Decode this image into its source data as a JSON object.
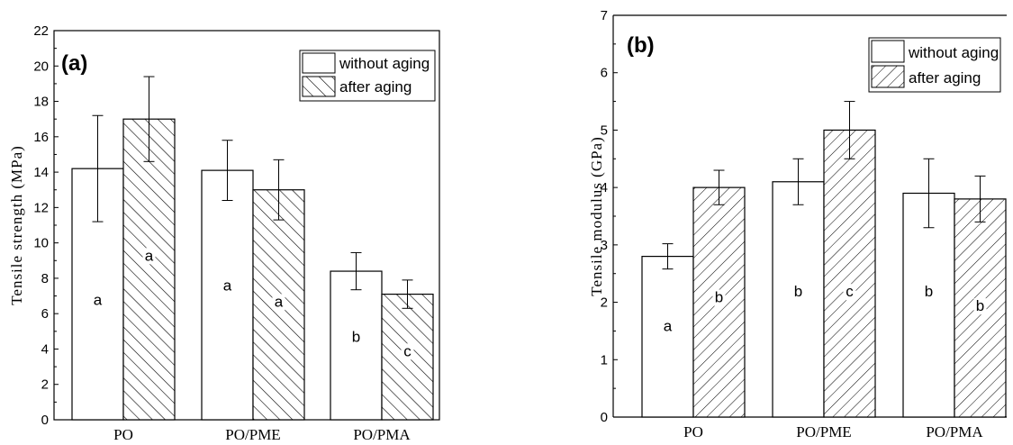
{
  "chart_data": [
    {
      "type": "bar",
      "panel_label": "(a)",
      "ylabel": "Tensile strength (MPa)",
      "xlabel": "",
      "ylim": [
        0,
        22
      ],
      "yticks": [
        "0",
        "2",
        "4",
        "6",
        "8",
        "10",
        "12",
        "14",
        "16",
        "18",
        "20",
        "22"
      ],
      "categories": [
        "PO",
        "PO/PME",
        "PO/PMA"
      ],
      "legend_position": "top-right",
      "series": [
        {
          "name": "without aging",
          "pattern": "plain",
          "values": [
            14.2,
            14.1,
            8.4
          ],
          "errors": [
            3.0,
            1.7,
            1.05
          ],
          "letters": [
            "a",
            "a",
            "b"
          ],
          "letter_y": [
            6.5,
            7.3,
            4.4
          ]
        },
        {
          "name": "after aging",
          "pattern": "hatch-backslash",
          "values": [
            17.0,
            13.0,
            7.1
          ],
          "errors": [
            2.4,
            1.7,
            0.8
          ],
          "letters": [
            "a",
            "a",
            "c"
          ],
          "letter_y": [
            9.0,
            6.4,
            3.6
          ]
        }
      ]
    },
    {
      "type": "bar",
      "panel_label": "(b)",
      "ylabel": "Tensile modulus (GPa)",
      "xlabel": "",
      "ylim": [
        0,
        7
      ],
      "yticks": [
        "0",
        "1",
        "2",
        "3",
        "4",
        "5",
        "6",
        "7"
      ],
      "categories": [
        "PO",
        "PO/PME",
        "PO/PMA"
      ],
      "legend_position": "top-right",
      "series": [
        {
          "name": "without aging",
          "pattern": "plain",
          "values": [
            2.8,
            4.1,
            3.9
          ],
          "errors": [
            0.22,
            0.4,
            0.6
          ],
          "letters": [
            "a",
            "b",
            "b"
          ],
          "letter_y": [
            1.5,
            2.1,
            2.1
          ]
        },
        {
          "name": "after aging",
          "pattern": "hatch-slash",
          "values": [
            4.0,
            5.0,
            3.8
          ],
          "errors": [
            0.3,
            0.5,
            0.4
          ],
          "letters": [
            "b",
            "c",
            "b"
          ],
          "letter_y": [
            2.0,
            2.1,
            1.85
          ]
        }
      ]
    }
  ]
}
